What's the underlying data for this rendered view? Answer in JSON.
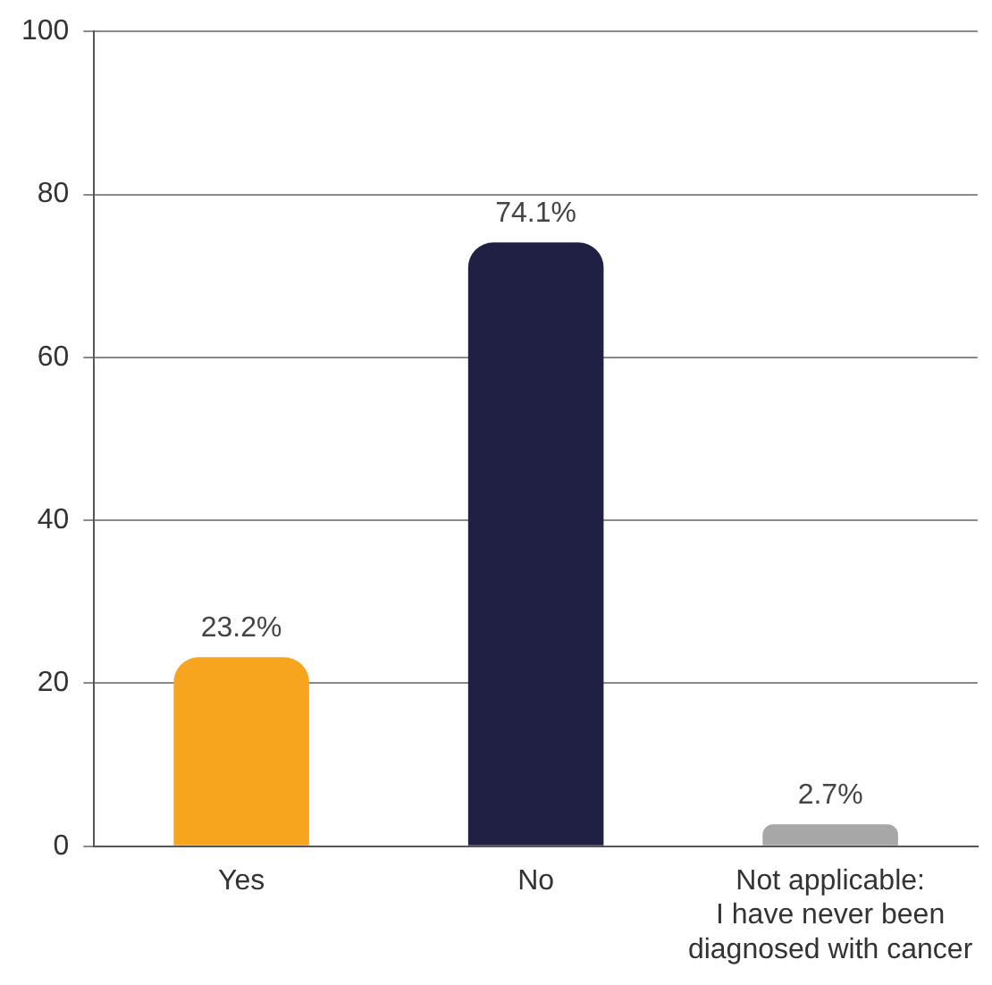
{
  "chart_data": {
    "type": "bar",
    "categories": [
      "Yes",
      "No",
      "Not applicable: I have never been diagnosed with cancer"
    ],
    "values": [
      23.2,
      74.1,
      2.7
    ],
    "colors": [
      "#f7a51e",
      "#1f2043",
      "#a7a7a7"
    ],
    "value_labels": [
      "23.2%",
      "74.1%",
      "2.7%"
    ],
    "ylim": [
      0,
      100
    ],
    "yticks": [
      0,
      20,
      40,
      60,
      80,
      100
    ],
    "grid": "y",
    "legend": false
  }
}
